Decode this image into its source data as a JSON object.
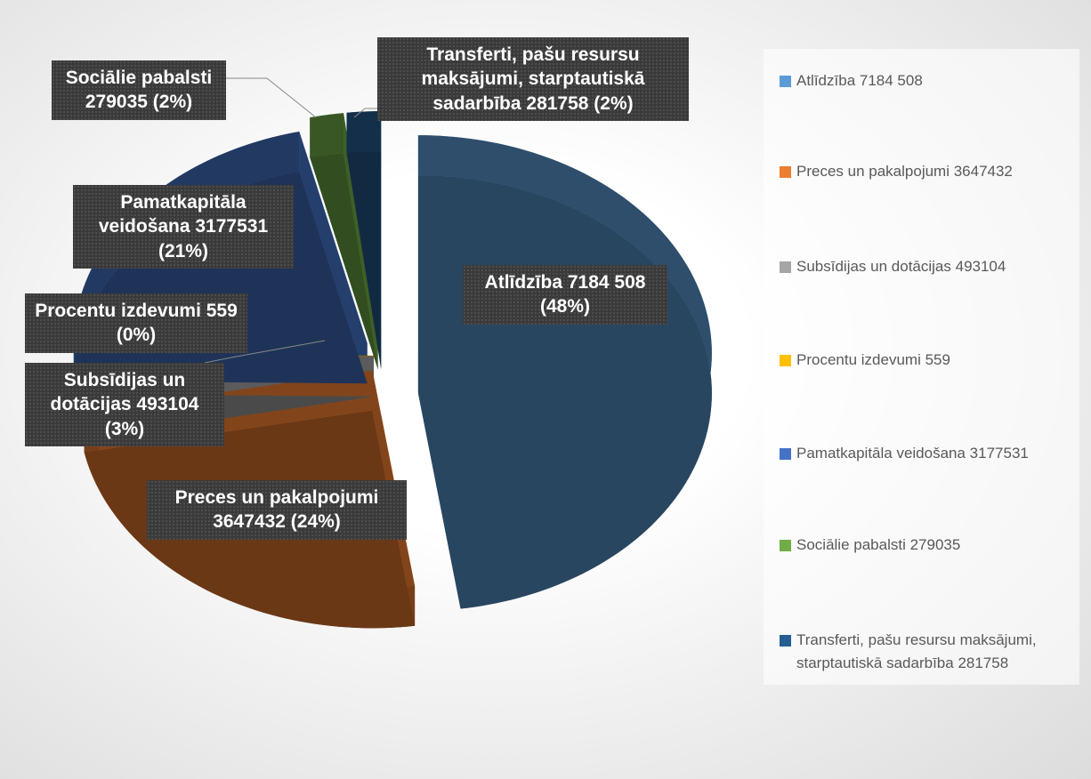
{
  "chart_data": {
    "type": "pie",
    "categories": [
      "Atlīdzība 7184 508",
      "Preces un pakalpojumi 3647432",
      "Subsīdijas un dotācijas  493104",
      "Procentu izdevumi 559",
      "Pamatkapitāla veidošana 3177531",
      "Sociālie pabalsti 279035",
      "Transferti, pašu resursu maksājumi, starptautiskā sadarbība 281758"
    ],
    "values": [
      7184508,
      3647432,
      493104,
      559,
      3177531,
      279035,
      281758
    ],
    "value_labels": [
      "Atlīdzība 7184 508 (48%)",
      "Preces un pakalpojumi 3647432 (24%)",
      "Subsīdijas un dotācijas  493104 (3%)",
      "Procentu izdevumi 559 (0%)",
      "Pamatkapitāla veidošana 3177531 (21%)",
      "Sociālie pabalsti 279035 (2%)",
      "Transferti, pašu resursu maksājumi, starptautiskā sadarbība 281758 (2%)"
    ],
    "colors": [
      "#5b9bd5",
      "#ed7d31",
      "#a5a5a5",
      "#ffc000",
      "#4472c4",
      "#70ad47",
      "#255e91"
    ],
    "legend": "right"
  }
}
